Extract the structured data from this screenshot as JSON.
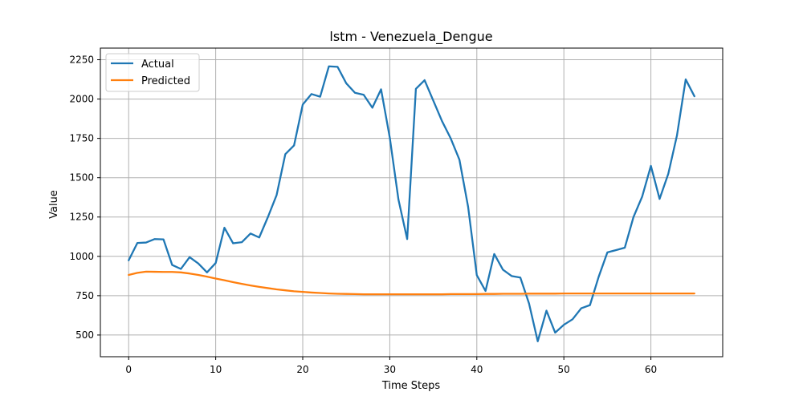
{
  "chart_data": {
    "type": "line",
    "title": "lstm - Venezuela_Dengue",
    "xlabel": "Time Steps",
    "ylabel": "Value",
    "xlim": [
      -3.25,
      68.25
    ],
    "ylim": [
      362,
      2324
    ],
    "xticks": [
      0,
      10,
      20,
      30,
      40,
      50,
      60
    ],
    "yticks": [
      500,
      750,
      1000,
      1250,
      1500,
      1750,
      2000,
      2250
    ],
    "xtick_labels": [
      "0",
      "10",
      "20",
      "30",
      "40",
      "50",
      "60"
    ],
    "ytick_labels": [
      "500",
      "750",
      "1000",
      "1250",
      "1500",
      "1750",
      "2000",
      "2250"
    ],
    "grid": true,
    "legend_position": "upper-left",
    "series": [
      {
        "name": "Actual",
        "color": "#1f77b4",
        "x": [
          0,
          1,
          2,
          3,
          4,
          5,
          6,
          7,
          8,
          9,
          10,
          11,
          12,
          13,
          14,
          15,
          16,
          17,
          18,
          19,
          20,
          21,
          22,
          23,
          24,
          25,
          26,
          27,
          28,
          29,
          30,
          31,
          32,
          33,
          34,
          35,
          36,
          37,
          38,
          39,
          40,
          41,
          42,
          43,
          44,
          45,
          46,
          47,
          48,
          49,
          50,
          51,
          52,
          53,
          54,
          55,
          56,
          57,
          58,
          59,
          60,
          61,
          62,
          63,
          64,
          65
        ],
        "values": [
          975,
          1085,
          1088,
          1110,
          1108,
          945,
          920,
          995,
          955,
          898,
          958,
          1182,
          1083,
          1090,
          1145,
          1120,
          1250,
          1390,
          1650,
          1705,
          1965,
          2032,
          2015,
          2208,
          2205,
          2100,
          2040,
          2027,
          1945,
          2062,
          1755,
          1360,
          1110,
          2065,
          2120,
          1990,
          1860,
          1750,
          1615,
          1315,
          880,
          780,
          1015,
          915,
          875,
          865,
          700,
          460,
          655,
          515,
          565,
          600,
          670,
          690,
          870,
          1025,
          1040,
          1055,
          1250,
          1380,
          1575,
          1365,
          1525,
          1770,
          2125,
          2018
        ]
      },
      {
        "name": "Predicted",
        "color": "#ff7f0e",
        "x": [
          0,
          1,
          2,
          3,
          4,
          5,
          6,
          7,
          8,
          9,
          10,
          11,
          12,
          13,
          14,
          15,
          16,
          17,
          18,
          19,
          20,
          21,
          22,
          23,
          24,
          25,
          26,
          27,
          28,
          29,
          30,
          31,
          32,
          33,
          34,
          35,
          36,
          37,
          38,
          39,
          40,
          41,
          42,
          43,
          44,
          45,
          46,
          47,
          48,
          49,
          50,
          51,
          52,
          53,
          54,
          55,
          56,
          57,
          58,
          59,
          60,
          61,
          62,
          63,
          64,
          65
        ],
        "values": [
          882,
          895,
          903,
          902,
          901,
          901,
          898,
          891,
          882,
          871,
          859,
          848,
          836,
          825,
          815,
          806,
          798,
          790,
          784,
          778,
          774,
          770,
          767,
          764,
          762,
          761,
          760,
          759,
          759,
          759,
          759,
          759,
          759,
          759,
          759,
          759,
          759,
          760,
          760,
          760,
          760,
          761,
          761,
          762,
          762,
          762,
          763,
          763,
          763,
          763,
          764,
          764,
          764,
          764,
          764,
          764,
          764,
          764,
          764,
          764,
          764,
          764,
          764,
          764,
          764,
          764
        ]
      }
    ]
  }
}
